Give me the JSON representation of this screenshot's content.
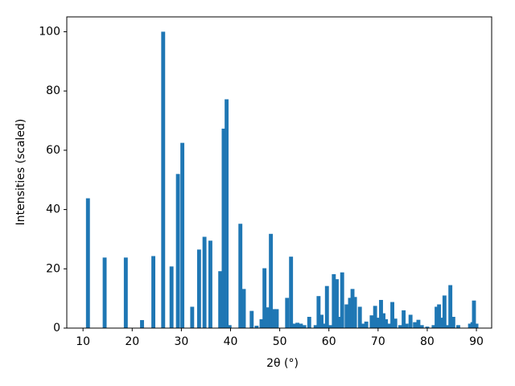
{
  "chart_data": {
    "type": "bar",
    "xlabel": "2θ (°)",
    "ylabel": "Intensities (scaled)",
    "color": "#1f77b4",
    "x": [
      11.0,
      14.4,
      18.7,
      22.0,
      24.3,
      26.3,
      28.0,
      29.3,
      30.2,
      32.2,
      33.6,
      34.7,
      35.9,
      37.9,
      38.6,
      39.2,
      39.8,
      42.0,
      42.7,
      44.3,
      45.3,
      46.3,
      46.9,
      47.6,
      48.2,
      48.8,
      49.4,
      51.5,
      52.3,
      53.0,
      53.6,
      54.3,
      55.0,
      56.0,
      57.3,
      57.9,
      58.5,
      59.0,
      59.6,
      60.3,
      61.0,
      61.6,
      62.2,
      62.7,
      63.6,
      64.3,
      64.8,
      65.3,
      66.3,
      66.9,
      67.6,
      68.7,
      69.4,
      70.0,
      70.6,
      71.1,
      71.6,
      72.2,
      72.9,
      73.5,
      74.5,
      75.2,
      75.8,
      76.6,
      77.5,
      78.2,
      78.9,
      80.0,
      81.3,
      81.9,
      82.4,
      83.0,
      83.5,
      84.2,
      84.7,
      85.3,
      86.3,
      88.7,
      89.2,
      89.5,
      90.0
    ],
    "values": [
      43.8,
      23.8,
      23.8,
      2.7,
      24.3,
      100,
      20.8,
      52,
      62.5,
      7.2,
      26.5,
      30.8,
      29.5,
      19.2,
      67.3,
      77.2,
      1,
      35.2,
      13.2,
      5.8,
      0.8,
      3,
      20.2,
      7,
      31.8,
      6.4,
      6.4,
      10.2,
      24.1,
      1.5,
      1.8,
      1.5,
      1,
      3.8,
      1,
      10.8,
      4.5,
      1.5,
      14.2,
      1,
      18.2,
      16.5,
      3.8,
      18.8,
      8,
      10.2,
      13.2,
      10.5,
      7.2,
      1.5,
      2.2,
      4.3,
      7.5,
      3.5,
      9.5,
      5,
      3,
      1.5,
      8.8,
      3.2,
      1,
      6,
      1.5,
      4.5,
      2,
      2.8,
      1,
      0.5,
      1,
      7.2,
      8,
      3.5,
      11,
      1,
      14.5,
      3.8,
      1,
      1.5,
      2,
      9.3,
      1.5
    ],
    "xlim": [
      6.7,
      93.1
    ],
    "xticks": [
      10,
      20,
      30,
      40,
      50,
      60,
      70,
      80,
      90
    ],
    "ylim": [
      0,
      105
    ],
    "yticks": [
      0,
      20,
      40,
      60,
      80,
      100
    ]
  }
}
